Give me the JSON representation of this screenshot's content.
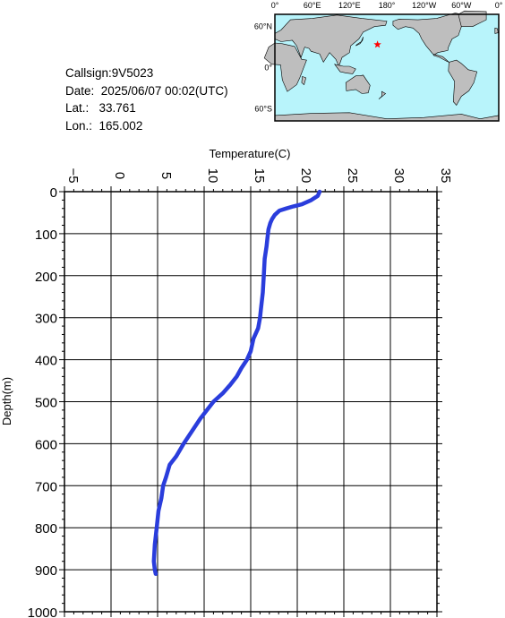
{
  "info": {
    "callsign": "Callsign:9V5023",
    "date": "Date:  2025/06/07 00:02(UTC)",
    "lat": "Lat.:   33.761",
    "lon": "Lon.:  165.002"
  },
  "map": {
    "lon_labels": [
      "0°",
      "60°E",
      "120°E",
      "180°",
      "120°W",
      "60°W",
      "0°"
    ],
    "lat_labels": [
      "60°N",
      "0°",
      "60°S"
    ],
    "marker": {
      "lat": 33.761,
      "lon": 165.002,
      "color": "#ff0000"
    },
    "ocean_color": "#b8f4fb",
    "land_color": "#bebebe"
  },
  "chart_data": {
    "type": "line",
    "xlabel": "Temperature(C)",
    "ylabel": "Depth(m)",
    "xlim": [
      -5,
      35
    ],
    "ylim": [
      0,
      1000
    ],
    "y_inverted": true,
    "x_ticks": [
      -5,
      0,
      5,
      10,
      15,
      20,
      25,
      30,
      35
    ],
    "y_ticks": [
      0,
      100,
      200,
      300,
      400,
      500,
      600,
      700,
      800,
      900,
      1000
    ],
    "grid": true,
    "series": [
      {
        "color": "#2a3ddc",
        "x": [
          22.4,
          22.2,
          21.5,
          20.5,
          19.6,
          18.8,
          18.1,
          17.6,
          17.3,
          17.1,
          16.9,
          16.8,
          16.7,
          16.5,
          16.4,
          16.3,
          16.1,
          16.0,
          15.8,
          15.3,
          15.0,
          14.6,
          14.0,
          13.5,
          12.8,
          12.0,
          11.0,
          10.3,
          9.6,
          8.7,
          7.8,
          7.0,
          6.3,
          5.9,
          5.6,
          5.4,
          5.1,
          4.9,
          4.7,
          4.6,
          4.7,
          4.8
        ],
        "y": [
          0,
          10,
          20,
          30,
          35,
          40,
          45,
          55,
          65,
          75,
          90,
          110,
          130,
          160,
          200,
          240,
          280,
          300,
          325,
          350,
          380,
          400,
          420,
          440,
          460,
          480,
          500,
          520,
          540,
          570,
          600,
          630,
          650,
          680,
          700,
          730,
          760,
          800,
          840,
          880,
          900,
          910
        ]
      }
    ]
  }
}
